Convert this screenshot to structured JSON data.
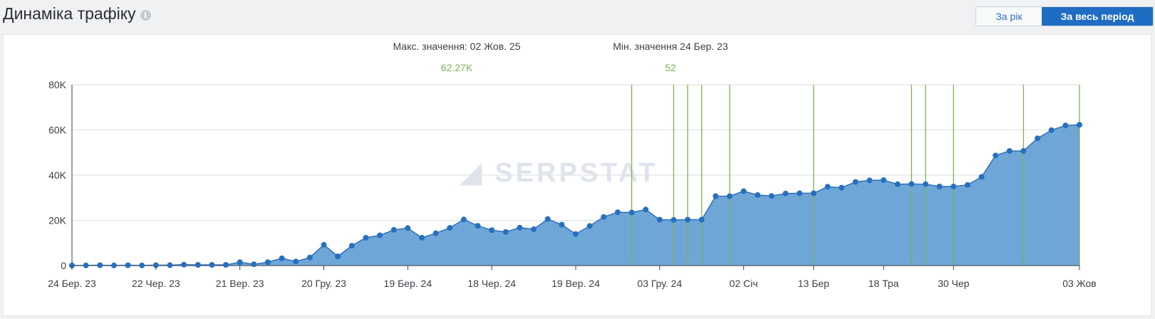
{
  "header": {
    "title": "Динаміка трафіку",
    "info_icon": "info-icon"
  },
  "period_toggle": {
    "year_label": "За рік",
    "all_label": "За весь період",
    "selected": "all"
  },
  "stats": {
    "max_label": "Макс. значення: 02 Жов. 25",
    "max_value": "62.27K",
    "min_label": "Мін. значення 24 Бер. 23",
    "min_value": "52"
  },
  "colors": {
    "area_fill": "#6ea6d8",
    "line": "#2f6fb7",
    "marker": "#2770bd",
    "event_line": "#7fb24a",
    "grid": "#d9dde3",
    "watermark": "#dfe3ec"
  },
  "watermark": "SERPSTAT",
  "chart_data": {
    "type": "area",
    "title": "",
    "xlabel": "",
    "ylabel": "",
    "ylim": [
      0,
      80000
    ],
    "yticks": [
      0,
      20000,
      40000,
      60000,
      80000
    ],
    "ytick_labels": [
      "0",
      "20K",
      "40K",
      "60K",
      "80K"
    ],
    "grid": true,
    "x_labels": [
      {
        "index": 0,
        "label": "24 Бер. 23"
      },
      {
        "index": 6,
        "label": "22 Чер. 23"
      },
      {
        "index": 12,
        "label": "21 Вер. 23"
      },
      {
        "index": 18,
        "label": "20 Гру. 23"
      },
      {
        "index": 24,
        "label": "19 Бер. 24"
      },
      {
        "index": 30,
        "label": "18 Чер. 24"
      },
      {
        "index": 36,
        "label": "19 Вер. 24"
      },
      {
        "index": 42,
        "label": "03 Гру. 24"
      },
      {
        "index": 48,
        "label": "02 Січ"
      },
      {
        "index": 53,
        "label": "13 Бер"
      },
      {
        "index": 58,
        "label": "18 Тра"
      },
      {
        "index": 63,
        "label": "30 Чер"
      },
      {
        "index": 72,
        "label": "03 Жов"
      }
    ],
    "series": [
      {
        "values": [
          52,
          100,
          150,
          100,
          150,
          100,
          200,
          200,
          400,
          300,
          300,
          300,
          1500,
          600,
          1500,
          3200,
          1800,
          3600,
          9200,
          4100,
          8800,
          12300,
          13400,
          15800,
          16600,
          12300,
          14300,
          16700,
          20400,
          17600,
          15700,
          14900,
          16800,
          16100,
          20600,
          18100,
          14000,
          17500,
          21500,
          23600,
          23500,
          24800,
          20300,
          20200,
          20300,
          20300,
          30700,
          30700,
          32900,
          31200,
          30800,
          31900,
          32000,
          32000,
          34900,
          34500,
          37000,
          37700,
          37800,
          36000,
          36100,
          36000,
          35000,
          35000,
          35700,
          39200,
          48700,
          50700,
          50700,
          56300,
          59900,
          62000,
          62270
        ]
      }
    ],
    "event_markers": [
      40,
      43,
      44,
      45,
      47,
      53,
      60,
      61,
      63,
      68,
      72
    ]
  }
}
